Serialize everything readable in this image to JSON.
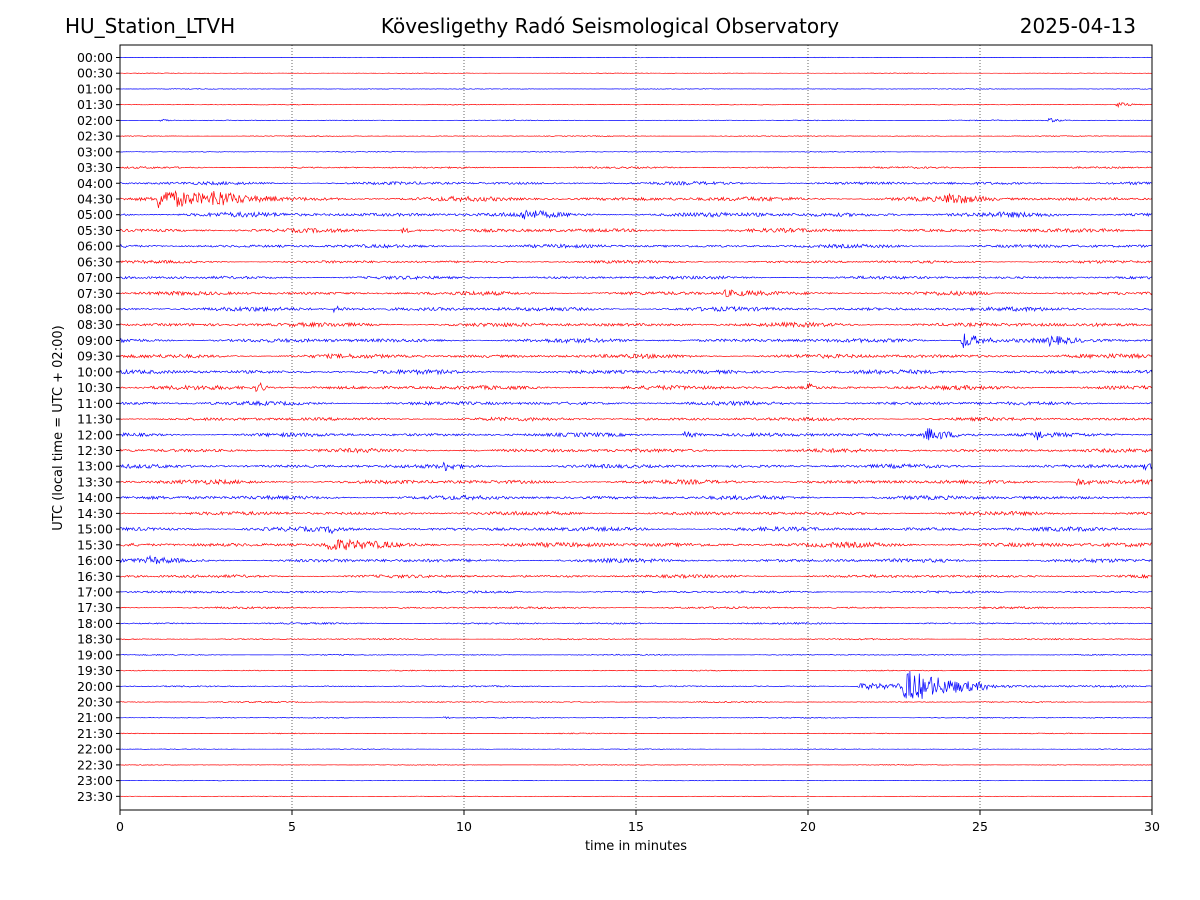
{
  "header": {
    "station": "HU_Station_LTVH",
    "title": "Kövesligethy Radó Seismological Observatory",
    "date": "2025-04-13"
  },
  "chart_data": {
    "type": "line",
    "subtype": "helicorder",
    "xlabel": "time in minutes",
    "ylabel": "UTC (local time = UTC + 02:00)",
    "xlim": [
      0,
      30
    ],
    "x_ticks": [
      0,
      5,
      10,
      15,
      20,
      25,
      30
    ],
    "vertical_gridlines": true,
    "trace_colors": [
      "#0000ff",
      "#ff0000"
    ],
    "rows": [
      "00:00",
      "00:30",
      "01:00",
      "01:30",
      "02:00",
      "02:30",
      "03:00",
      "03:30",
      "04:00",
      "04:30",
      "05:00",
      "05:30",
      "06:00",
      "06:30",
      "07:00",
      "07:30",
      "08:00",
      "08:30",
      "09:00",
      "09:30",
      "10:00",
      "10:30",
      "11:00",
      "11:30",
      "12:00",
      "12:30",
      "13:00",
      "13:30",
      "14:00",
      "14:30",
      "15:00",
      "15:30",
      "16:00",
      "16:30",
      "17:00",
      "17:30",
      "18:00",
      "18:30",
      "19:00",
      "19:30",
      "20:00",
      "20:30",
      "21:00",
      "21:30",
      "22:00",
      "22:30",
      "23:00",
      "23:30"
    ],
    "noise_level": [
      0.3,
      0.3,
      0.4,
      0.4,
      0.5,
      0.5,
      0.5,
      1.0,
      1.8,
      2.6,
      2.8,
      2.2,
      2.0,
      1.6,
      1.8,
      2.2,
      2.4,
      2.4,
      2.4,
      2.4,
      2.4,
      2.4,
      2.2,
      2.0,
      2.2,
      2.2,
      2.2,
      2.4,
      2.4,
      2.2,
      2.4,
      2.8,
      2.2,
      1.8,
      1.4,
      1.2,
      1.0,
      0.8,
      0.6,
      0.6,
      0.8,
      0.7,
      0.6,
      0.5,
      0.4,
      0.4,
      0.3,
      0.3
    ],
    "events": [
      {
        "row": "01:30",
        "minute": 29.0,
        "amp": 3,
        "dur": 0.8
      },
      {
        "row": "02:00",
        "minute": 1.2,
        "amp": 2,
        "dur": 0.4
      },
      {
        "row": "02:00",
        "minute": 27.0,
        "amp": 2,
        "dur": 0.8
      },
      {
        "row": "04:30",
        "minute": 1.1,
        "amp": 9,
        "dur": 3.5
      },
      {
        "row": "04:30",
        "minute": 2.7,
        "amp": 7,
        "dur": 1.0
      },
      {
        "row": "04:30",
        "minute": 24.0,
        "amp": 5,
        "dur": 1.5
      },
      {
        "row": "05:00",
        "minute": 11.7,
        "amp": 4,
        "dur": 1.0
      },
      {
        "row": "05:30",
        "minute": 8.2,
        "amp": 3,
        "dur": 0.6
      },
      {
        "row": "07:30",
        "minute": 17.5,
        "amp": 3,
        "dur": 2.0
      },
      {
        "row": "08:00",
        "minute": 6.2,
        "amp": 3,
        "dur": 1.0
      },
      {
        "row": "09:00",
        "minute": 24.5,
        "amp": 9,
        "dur": 1.0
      },
      {
        "row": "09:00",
        "minute": 27.0,
        "amp": 4,
        "dur": 1.0
      },
      {
        "row": "10:30",
        "minute": 4.0,
        "amp": 9,
        "dur": 0.3
      },
      {
        "row": "10:30",
        "minute": 20.0,
        "amp": 5,
        "dur": 0.3
      },
      {
        "row": "12:00",
        "minute": 16.4,
        "amp": 5,
        "dur": 0.6
      },
      {
        "row": "12:00",
        "minute": 23.4,
        "amp": 7,
        "dur": 1.6
      },
      {
        "row": "12:00",
        "minute": 26.6,
        "amp": 8,
        "dur": 0.3
      },
      {
        "row": "13:00",
        "minute": 9.4,
        "amp": 4,
        "dur": 0.6
      },
      {
        "row": "13:00",
        "minute": 29.8,
        "amp": 4,
        "dur": 0.3
      },
      {
        "row": "13:30",
        "minute": 27.8,
        "amp": 4,
        "dur": 1.0
      },
      {
        "row": "15:00",
        "minute": 6.1,
        "amp": 5,
        "dur": 0.3
      },
      {
        "row": "15:30",
        "minute": 6.0,
        "amp": 6,
        "dur": 2.0
      },
      {
        "row": "16:00",
        "minute": 0.8,
        "amp": 3,
        "dur": 1.0
      },
      {
        "row": "20:00",
        "minute": 22.8,
        "amp": 16,
        "dur": 2.5
      },
      {
        "row": "20:00",
        "minute": 21.5,
        "amp": 3,
        "dur": 8.0
      },
      {
        "row": "21:00",
        "minute": 9.4,
        "amp": 2,
        "dur": 0.3
      }
    ]
  }
}
